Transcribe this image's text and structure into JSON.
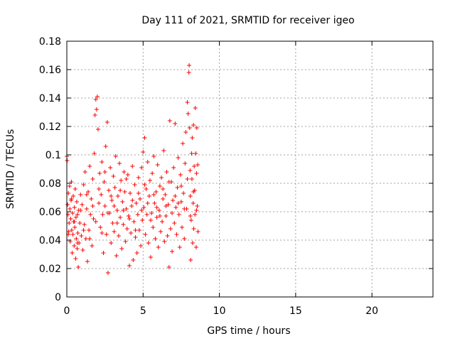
{
  "chart_data": {
    "type": "scatter",
    "title": "Day 111 of 2021, SRMTID for receiver igeo",
    "xlabel": "GPS time / hours",
    "ylabel": "SRMTID / TECUs",
    "xlim": [
      0,
      24
    ],
    "ylim": [
      0,
      0.18
    ],
    "xticks": [
      "0",
      "5",
      "10",
      "15",
      "20"
    ],
    "yticks": [
      "0",
      "0.02",
      "0.04",
      "0.06",
      "0.08",
      "0.1",
      "0.12",
      "0.14",
      "0.16",
      "0.18"
    ],
    "grid": true,
    "marker": "+",
    "colors": {
      "points": "#ff0000",
      "axes": "#000000",
      "grid": "#a0a0a0"
    },
    "series": [
      {
        "points": [
          [
            0.0,
            0.099
          ],
          [
            0.02,
            0.096
          ],
          [
            0.05,
            0.065
          ],
          [
            0.08,
            0.058
          ],
          [
            0.1,
            0.073
          ],
          [
            0.12,
            0.046
          ],
          [
            0.15,
            0.052
          ],
          [
            0.18,
            0.078
          ],
          [
            0.2,
            0.062
          ],
          [
            0.22,
            0.039
          ],
          [
            0.25,
            0.055
          ],
          [
            0.28,
            0.068
          ],
          [
            0.3,
            0.081
          ],
          [
            0.32,
            0.047
          ],
          [
            0.35,
            0.031
          ],
          [
            0.38,
            0.059
          ],
          [
            0.4,
            0.044
          ],
          [
            0.42,
            0.071
          ],
          [
            0.45,
            0.053
          ],
          [
            0.48,
            0.036
          ],
          [
            0.5,
            0.063
          ],
          [
            0.52,
            0.049
          ],
          [
            0.55,
            0.076
          ],
          [
            0.58,
            0.027
          ],
          [
            0.6,
            0.056
          ],
          [
            0.62,
            0.041
          ],
          [
            0.65,
            0.067
          ],
          [
            0.68,
            0.034
          ],
          [
            0.7,
            0.058
          ],
          [
            0.72,
            0.045
          ],
          [
            0.75,
            0.021
          ],
          [
            0.78,
            0.061
          ],
          [
            0.8,
            0.038
          ],
          [
            0.85,
            0.052
          ],
          [
            0.9,
            0.072
          ],
          [
            0.95,
            0.043
          ],
          [
            1.0,
            0.065
          ],
          [
            1.05,
            0.033
          ],
          [
            1.1,
            0.079
          ],
          [
            1.15,
            0.051
          ],
          [
            1.2,
            0.088
          ],
          [
            1.25,
            0.041
          ],
          [
            1.3,
            0.062
          ],
          [
            1.35,
            0.025
          ],
          [
            1.4,
            0.074
          ],
          [
            1.45,
            0.047
          ],
          [
            1.5,
            0.092
          ],
          [
            1.55,
            0.058
          ],
          [
            1.6,
            0.069
          ],
          [
            1.65,
            0.036
          ],
          [
            1.7,
            0.083
          ],
          [
            1.75,
            0.055
          ],
          [
            1.8,
            0.101
          ],
          [
            1.85,
            0.128
          ],
          [
            1.9,
            0.139
          ],
          [
            1.95,
            0.132
          ],
          [
            2.0,
            0.141
          ],
          [
            2.05,
            0.118
          ],
          [
            2.1,
            0.066
          ],
          [
            2.15,
            0.087
          ],
          [
            2.2,
            0.049
          ],
          [
            2.25,
            0.072
          ],
          [
            2.3,
            0.095
          ],
          [
            2.35,
            0.058
          ],
          [
            2.4,
            0.031
          ],
          [
            2.45,
            0.081
          ],
          [
            2.5,
            0.064
          ],
          [
            2.55,
            0.106
          ],
          [
            2.6,
            0.044
          ],
          [
            2.65,
            0.123
          ],
          [
            2.7,
            0.017
          ],
          [
            2.75,
            0.075
          ],
          [
            2.8,
            0.059
          ],
          [
            2.85,
            0.091
          ],
          [
            2.9,
            0.038
          ],
          [
            2.95,
            0.068
          ],
          [
            3.0,
            0.052
          ],
          [
            3.05,
            0.085
          ],
          [
            3.1,
            0.046
          ],
          [
            3.15,
            0.077
          ],
          [
            3.2,
            0.099
          ],
          [
            3.25,
            0.029
          ],
          [
            3.3,
            0.061
          ],
          [
            3.35,
            0.071
          ],
          [
            3.4,
            0.043
          ],
          [
            3.45,
            0.094
          ],
          [
            3.5,
            0.056
          ],
          [
            3.55,
            0.082
          ],
          [
            3.6,
            0.034
          ],
          [
            3.65,
            0.067
          ],
          [
            3.7,
            0.051
          ],
          [
            3.75,
            0.088
          ],
          [
            3.8,
            0.074
          ],
          [
            3.85,
            0.039
          ],
          [
            3.9,
            0.062
          ],
          [
            3.95,
            0.048
          ],
          [
            4.0,
            0.086
          ],
          [
            4.05,
            0.057
          ],
          [
            4.1,
            0.022
          ],
          [
            4.15,
            0.073
          ],
          [
            4.2,
            0.045
          ],
          [
            4.25,
            0.064
          ],
          [
            4.3,
            0.092
          ],
          [
            4.35,
            0.026
          ],
          [
            4.4,
            0.053
          ],
          [
            4.45,
            0.079
          ],
          [
            4.5,
            0.042
          ],
          [
            4.55,
            0.066
          ],
          [
            4.6,
            0.031
          ],
          [
            4.65,
            0.058
          ],
          [
            4.7,
            0.084
          ],
          [
            4.75,
            0.047
          ],
          [
            4.8,
            0.069
          ],
          [
            4.85,
            0.036
          ],
          [
            4.9,
            0.091
          ],
          [
            4.95,
            0.054
          ],
          [
            5.0,
            0.102
          ],
          [
            5.05,
            0.063
          ],
          [
            5.1,
            0.112
          ],
          [
            5.15,
            0.044
          ],
          [
            5.2,
            0.076
          ],
          [
            5.25,
            0.058
          ],
          [
            5.3,
            0.095
          ],
          [
            5.35,
            0.038
          ],
          [
            5.4,
            0.071
          ],
          [
            5.45,
            0.082
          ],
          [
            5.5,
            0.028
          ],
          [
            5.55,
            0.059
          ],
          [
            5.6,
            0.087
          ],
          [
            5.65,
            0.049
          ],
          [
            5.7,
            0.099
          ],
          [
            5.75,
            0.066
          ],
          [
            5.8,
            0.041
          ],
          [
            5.85,
            0.074
          ],
          [
            5.9,
            0.056
          ],
          [
            5.95,
            0.093
          ],
          [
            6.0,
            0.035
          ],
          [
            6.05,
            0.061
          ],
          [
            6.1,
            0.078
          ],
          [
            6.15,
            0.046
          ],
          [
            6.2,
            0.084
          ],
          [
            6.25,
            0.053
          ],
          [
            6.3,
            0.069
          ],
          [
            6.35,
            0.103
          ],
          [
            6.4,
            0.039
          ],
          [
            6.45,
            0.072
          ],
          [
            6.5,
            0.057
          ],
          [
            6.55,
            0.088
          ],
          [
            6.6,
            0.043
          ],
          [
            6.65,
            0.065
          ],
          [
            6.7,
            0.021
          ],
          [
            6.75,
            0.124
          ],
          [
            6.8,
            0.048
          ],
          [
            6.85,
            0.081
          ],
          [
            6.9,
            0.032
          ],
          [
            6.95,
            0.068
          ],
          [
            7.0,
            0.091
          ],
          [
            7.05,
            0.052
          ],
          [
            7.1,
            0.122
          ],
          [
            7.15,
            0.063
          ],
          [
            7.2,
            0.044
          ],
          [
            7.25,
            0.077
          ],
          [
            7.3,
            0.098
          ],
          [
            7.35,
            0.058
          ],
          [
            7.4,
            0.035
          ],
          [
            7.45,
            0.086
          ],
          [
            7.5,
            0.067
          ],
          [
            7.55,
            0.049
          ],
          [
            7.6,
            0.108
          ],
          [
            7.65,
            0.073
          ],
          [
            7.7,
            0.041
          ],
          [
            7.75,
            0.094
          ],
          [
            7.8,
            0.116
          ],
          [
            7.85,
            0.062
          ],
          [
            7.9,
            0.137
          ],
          [
            7.95,
            0.129
          ],
          [
            8.0,
            0.158
          ],
          [
            8.02,
            0.163
          ],
          [
            8.05,
            0.119
          ],
          [
            8.08,
            0.089
          ],
          [
            8.1,
            0.071
          ],
          [
            8.12,
            0.026
          ],
          [
            8.15,
            0.054
          ],
          [
            8.18,
            0.101
          ],
          [
            8.2,
            0.083
          ],
          [
            8.22,
            0.112
          ],
          [
            8.25,
            0.038
          ],
          [
            8.28,
            0.066
          ],
          [
            8.3,
            0.121
          ],
          [
            8.32,
            0.048
          ],
          [
            8.35,
            0.092
          ],
          [
            8.38,
            0.075
          ],
          [
            8.4,
            0.058
          ],
          [
            8.42,
            0.133
          ],
          [
            8.45,
            0.101
          ],
          [
            8.48,
            0.035
          ],
          [
            8.5,
            0.087
          ],
          [
            8.52,
            0.119
          ],
          [
            8.55,
            0.064
          ],
          [
            8.58,
            0.093
          ],
          [
            8.6,
            0.046
          ],
          [
            0.1,
            0.044
          ],
          [
            0.3,
            0.069
          ],
          [
            0.5,
            0.053
          ],
          [
            0.7,
            0.038
          ],
          [
            0.9,
            0.061
          ],
          [
            1.1,
            0.047
          ],
          [
            1.3,
            0.072
          ],
          [
            1.5,
            0.041
          ],
          [
            1.7,
            0.064
          ],
          [
            1.9,
            0.053
          ],
          [
            2.1,
            0.076
          ],
          [
            2.3,
            0.045
          ],
          [
            2.5,
            0.088
          ],
          [
            2.7,
            0.059
          ],
          [
            2.9,
            0.071
          ],
          [
            3.1,
            0.064
          ],
          [
            3.3,
            0.052
          ],
          [
            3.5,
            0.075
          ],
          [
            3.7,
            0.061
          ],
          [
            3.9,
            0.083
          ],
          [
            4.1,
            0.055
          ],
          [
            4.3,
            0.068
          ],
          [
            4.5,
            0.047
          ],
          [
            4.7,
            0.073
          ],
          [
            4.9,
            0.061
          ],
          [
            5.1,
            0.079
          ],
          [
            5.3,
            0.066
          ],
          [
            5.5,
            0.054
          ],
          [
            5.7,
            0.072
          ],
          [
            5.9,
            0.063
          ],
          [
            6.1,
            0.057
          ],
          [
            6.3,
            0.076
          ],
          [
            6.5,
            0.064
          ],
          [
            6.7,
            0.081
          ],
          [
            6.9,
            0.059
          ],
          [
            7.1,
            0.071
          ],
          [
            7.3,
            0.066
          ],
          [
            7.5,
            0.078
          ],
          [
            7.7,
            0.062
          ],
          [
            7.9,
            0.083
          ],
          [
            8.1,
            0.057
          ],
          [
            8.3,
            0.074
          ],
          [
            8.5,
            0.061
          ]
        ]
      }
    ]
  }
}
